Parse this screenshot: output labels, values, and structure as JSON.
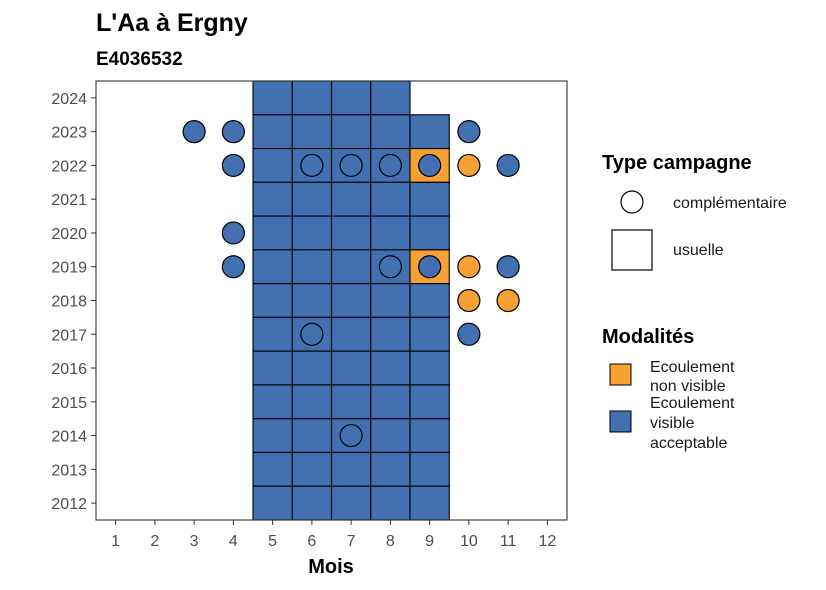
{
  "chart_data": {
    "type": "heatmap",
    "title": "L'Aa à Ergny",
    "subtitle": "E4036532",
    "xlabel": "Mois",
    "ylabel": "",
    "x_ticks": [
      1,
      2,
      3,
      4,
      5,
      6,
      7,
      8,
      9,
      10,
      11,
      12
    ],
    "y_ticks": [
      2012,
      2013,
      2014,
      2015,
      2016,
      2017,
      2018,
      2019,
      2020,
      2021,
      2022,
      2023,
      2024
    ],
    "xlim": [
      0.5,
      12.5
    ],
    "ylim": [
      2011.5,
      2024.5
    ],
    "grid": false,
    "legend_position": "right",
    "colors": {
      "Ecoulement visible acceptable": "#4270b0",
      "Ecoulement non visible": "#f7a033"
    },
    "legend": {
      "type_campagne": {
        "title": "Type campagne",
        "entries": [
          "complémentaire",
          "usuelle"
        ]
      },
      "modalites": {
        "title": "Modalités",
        "entries": [
          {
            "key": "Ecoulement non visible",
            "lines": [
              "Ecoulement",
              "non visible"
            ]
          },
          {
            "key": "Ecoulement visible acceptable",
            "lines": [
              "Ecoulement",
              "visible",
              "acceptable"
            ]
          }
        ]
      }
    },
    "usuelle_tiles": [
      {
        "year": 2024,
        "months": [
          5,
          6,
          7,
          8
        ],
        "modalite": "Ecoulement visible acceptable"
      },
      {
        "year": 2023,
        "months": [
          5,
          6,
          7,
          8,
          9
        ],
        "modalite": "Ecoulement visible acceptable"
      },
      {
        "year": 2022,
        "months": [
          5,
          6,
          7,
          8
        ],
        "modalite": "Ecoulement visible acceptable"
      },
      {
        "year": 2022,
        "months": [
          9
        ],
        "modalite": "Ecoulement non visible"
      },
      {
        "year": 2021,
        "months": [
          5,
          6,
          7,
          8,
          9
        ],
        "modalite": "Ecoulement visible acceptable"
      },
      {
        "year": 2020,
        "months": [
          5,
          6,
          7,
          8,
          9
        ],
        "modalite": "Ecoulement visible acceptable"
      },
      {
        "year": 2019,
        "months": [
          5,
          6,
          7,
          8
        ],
        "modalite": "Ecoulement visible acceptable"
      },
      {
        "year": 2019,
        "months": [
          9
        ],
        "modalite": "Ecoulement non visible"
      },
      {
        "year": 2018,
        "months": [
          5,
          6,
          7,
          8,
          9
        ],
        "modalite": "Ecoulement visible acceptable"
      },
      {
        "year": 2017,
        "months": [
          5,
          6,
          7,
          8,
          9
        ],
        "modalite": "Ecoulement visible acceptable"
      },
      {
        "year": 2016,
        "months": [
          5,
          6,
          7,
          8,
          9
        ],
        "modalite": "Ecoulement visible acceptable"
      },
      {
        "year": 2015,
        "months": [
          5,
          6,
          7,
          8,
          9
        ],
        "modalite": "Ecoulement visible acceptable"
      },
      {
        "year": 2014,
        "months": [
          5,
          6,
          7,
          8,
          9
        ],
        "modalite": "Ecoulement visible acceptable"
      },
      {
        "year": 2013,
        "months": [
          5,
          6,
          7,
          8,
          9
        ],
        "modalite": "Ecoulement visible acceptable"
      },
      {
        "year": 2012,
        "months": [
          5,
          6,
          7,
          8,
          9
        ],
        "modalite": "Ecoulement visible acceptable"
      }
    ],
    "complementaire_points": [
      {
        "year": 2023,
        "month": 3,
        "modalite": "Ecoulement visible acceptable"
      },
      {
        "year": 2023,
        "month": 4,
        "modalite": "Ecoulement visible acceptable"
      },
      {
        "year": 2023,
        "month": 10,
        "modalite": "Ecoulement visible acceptable"
      },
      {
        "year": 2022,
        "month": 4,
        "modalite": "Ecoulement visible acceptable"
      },
      {
        "year": 2022,
        "month": 6,
        "modalite": "Ecoulement visible acceptable"
      },
      {
        "year": 2022,
        "month": 7,
        "modalite": "Ecoulement visible acceptable"
      },
      {
        "year": 2022,
        "month": 8,
        "modalite": "Ecoulement visible acceptable"
      },
      {
        "year": 2022,
        "month": 9,
        "modalite": "Ecoulement visible acceptable"
      },
      {
        "year": 2022,
        "month": 10,
        "modalite": "Ecoulement non visible"
      },
      {
        "year": 2022,
        "month": 11,
        "modalite": "Ecoulement visible acceptable"
      },
      {
        "year": 2020,
        "month": 4,
        "modalite": "Ecoulement visible acceptable"
      },
      {
        "year": 2019,
        "month": 4,
        "modalite": "Ecoulement visible acceptable"
      },
      {
        "year": 2019,
        "month": 8,
        "modalite": "Ecoulement visible acceptable"
      },
      {
        "year": 2019,
        "month": 9,
        "modalite": "Ecoulement visible acceptable"
      },
      {
        "year": 2019,
        "month": 10,
        "modalite": "Ecoulement non visible"
      },
      {
        "year": 2019,
        "month": 11,
        "modalite": "Ecoulement visible acceptable"
      },
      {
        "year": 2018,
        "month": 10,
        "modalite": "Ecoulement non visible"
      },
      {
        "year": 2018,
        "month": 11,
        "modalite": "Ecoulement non visible"
      },
      {
        "year": 2017,
        "month": 6,
        "modalite": "Ecoulement visible acceptable"
      },
      {
        "year": 2017,
        "month": 10,
        "modalite": "Ecoulement visible acceptable"
      },
      {
        "year": 2014,
        "month": 7,
        "modalite": "Ecoulement visible acceptable"
      }
    ]
  }
}
